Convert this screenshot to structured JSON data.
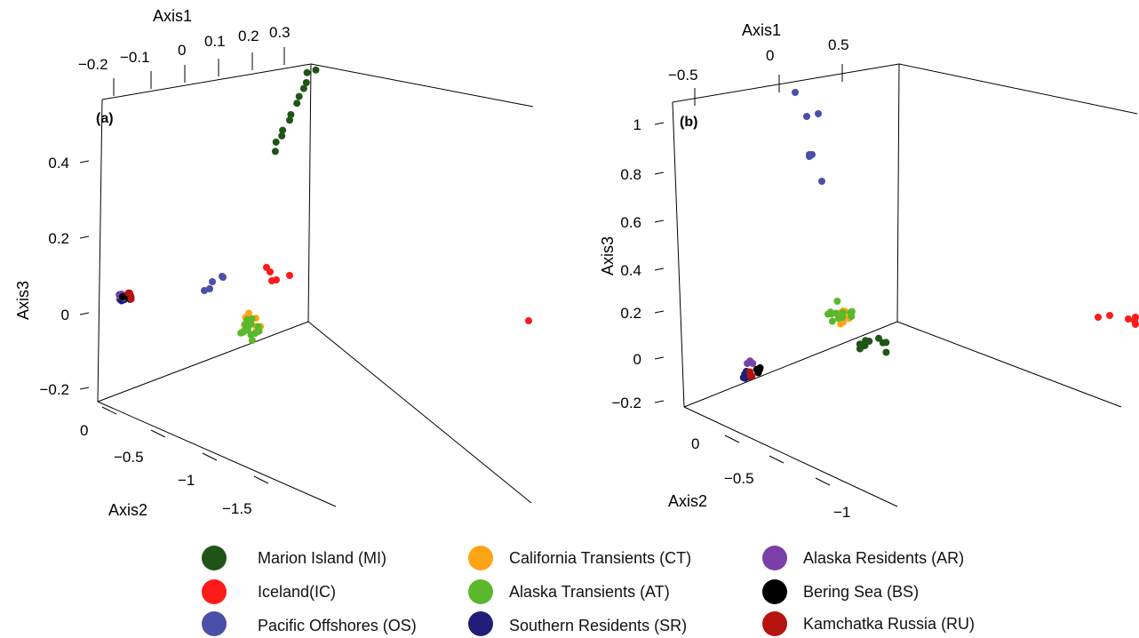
{
  "chart_data": [
    {
      "type": "scatter",
      "panel_label": "(a)",
      "axes": {
        "axis1": {
          "title": "Axis1",
          "ticks": [
            "−0.2",
            "−0.1",
            "0",
            "0.1",
            "0.2",
            "0.3"
          ]
        },
        "axis2": {
          "title": "Axis2",
          "ticks": [
            "0",
            "−0.5",
            "−1",
            "−1.5"
          ]
        },
        "axis3": {
          "title": "Axis3",
          "ticks": [
            "0.4",
            "0.2",
            "0",
            "−0.2"
          ]
        }
      },
      "clusters": [
        {
          "population": "MI",
          "approx_axis3": [
            0.42,
            0.62
          ],
          "count": 12
        },
        {
          "population": "IC",
          "approx_axis3": [
            0.02,
            0.06
          ],
          "count": 6
        },
        {
          "population": "OS",
          "approx_axis3": [
            0.02,
            0.05
          ],
          "count": 5
        },
        {
          "population": "CT",
          "approx_axis3": [
            -0.05,
            0.03
          ],
          "count": 10
        },
        {
          "population": "AT",
          "approx_axis3": [
            -0.07,
            0.02
          ],
          "count": 14
        },
        {
          "population": "SR",
          "approx_axis3": [
            0.04,
            0.05
          ],
          "count": 8
        },
        {
          "population": "AR",
          "approx_axis3": [
            0.04,
            0.05
          ],
          "count": 5
        },
        {
          "population": "BS",
          "approx_axis3": [
            0.04,
            0.05
          ],
          "count": 4
        },
        {
          "population": "RU",
          "approx_axis3": [
            0.04,
            0.05
          ],
          "count": 4
        }
      ]
    },
    {
      "type": "scatter",
      "panel_label": "(b)",
      "axes": {
        "axis1": {
          "title": "Axis1",
          "ticks": [
            "−0.5",
            "0",
            "0.5"
          ]
        },
        "axis2": {
          "title": "Axis2",
          "ticks": [
            "0",
            "−0.5",
            "−1"
          ]
        },
        "axis3": {
          "title": "Axis3",
          "ticks": [
            "1",
            "0.8",
            "0.6",
            "0.4",
            "0.2",
            "0",
            "−0.2"
          ]
        }
      },
      "clusters": [
        {
          "population": "OS",
          "approx_axis3": [
            0.75,
            1.1
          ],
          "count": 7
        },
        {
          "population": "CT",
          "approx_axis3": [
            0.1,
            0.2
          ],
          "count": 10
        },
        {
          "population": "AT",
          "approx_axis3": [
            0.1,
            0.25
          ],
          "count": 12
        },
        {
          "population": "MI",
          "approx_axis3": [
            0.0,
            0.05
          ],
          "count": 11
        },
        {
          "population": "IC",
          "approx_axis3": [
            0.15,
            0.2
          ],
          "count": 6
        },
        {
          "population": "SR",
          "approx_axis3": [
            -0.1,
            -0.05
          ],
          "count": 6
        },
        {
          "population": "AR",
          "approx_axis3": [
            -0.08,
            0.0
          ],
          "count": 4
        },
        {
          "population": "BS",
          "approx_axis3": [
            -0.08,
            -0.02
          ],
          "count": 5
        },
        {
          "population": "RU",
          "approx_axis3": [
            -0.08,
            -0.04
          ],
          "count": 3
        }
      ]
    }
  ],
  "legend": [
    {
      "code": "MI",
      "label": "Marion Island (MI)",
      "color": "#1e5517"
    },
    {
      "code": "IC",
      "label": "Iceland(IC)",
      "color": "#ff1a1a"
    },
    {
      "code": "OS",
      "label": "Pacific Offshores (OS)",
      "color": "#4a4fa8"
    },
    {
      "code": "CT",
      "label": "California Transients (CT)",
      "color": "#ffa415"
    },
    {
      "code": "AT",
      "label": "Alaska Transients (AT)",
      "color": "#5ab82c"
    },
    {
      "code": "SR",
      "label": "Southern Residents (SR)",
      "color": "#1f1f7a"
    },
    {
      "code": "AR",
      "label": "Alaska Residents (AR)",
      "color": "#7a40a8"
    },
    {
      "code": "BS",
      "label": "Bering Sea (BS)",
      "color": "#000000"
    },
    {
      "code": "RU",
      "label": "Kamchatka Russia (RU)",
      "color": "#b5130e"
    }
  ]
}
